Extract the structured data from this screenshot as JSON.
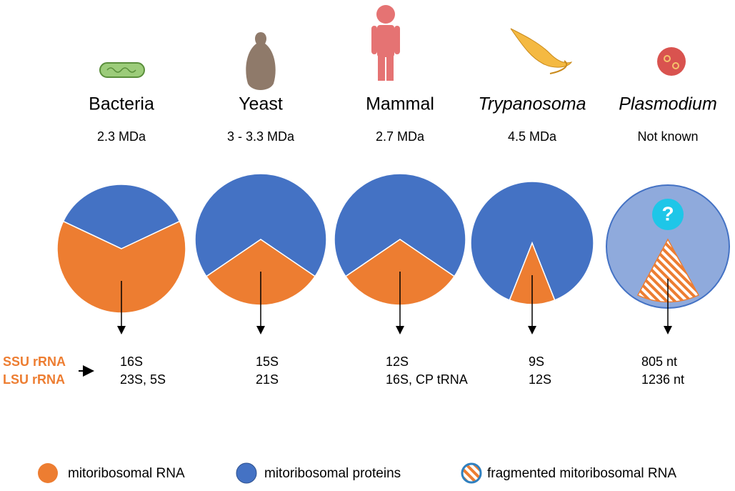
{
  "organisms": [
    {
      "name": "Bacteria",
      "italic": false,
      "mass": "2.3 MDa",
      "ssu": "16S",
      "lsu": "23S, 5S",
      "rna_percent": 64
    },
    {
      "name": "Yeast",
      "italic": false,
      "mass": "3 - 3.3 MDa",
      "ssu": "15S",
      "lsu": "21S",
      "rna_percent": 31
    },
    {
      "name": "Mammal",
      "italic": false,
      "mass": "2.7 MDa",
      "ssu": "12S",
      "lsu": "16S, CP tRNA",
      "rna_percent": 31
    },
    {
      "name": "Trypanosoma",
      "italic": true,
      "mass": "4.5 MDa",
      "ssu": "9S",
      "lsu": "12S",
      "rna_percent": 12
    },
    {
      "name": "Plasmodium",
      "italic": true,
      "mass": "Not known",
      "ssu": "805 nt",
      "lsu": "1236 nt"
    }
  ],
  "row_labels": {
    "ssu": "SSU rRNA",
    "lsu": "LSU rRNA"
  },
  "legend": [
    "mitoribosomal RNA",
    "mitoribosomal proteins",
    "fragmented mitoribosomal RNA"
  ]
}
